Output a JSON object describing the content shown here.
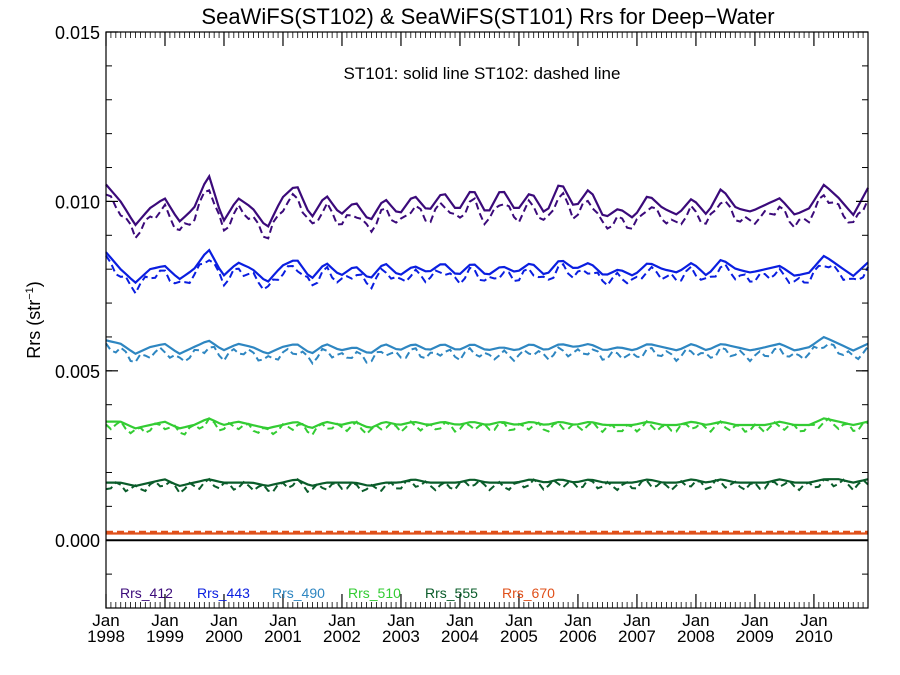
{
  "chart_data": {
    "type": "line",
    "title": "SeaWiFS(ST102) & SeaWiFS(ST101)  Rrs for Deep−Water",
    "annotation": "ST101: solid line   ST102: dashed line",
    "ylabel_base": "Rrs (str",
    "ylabel_sup": "−1",
    "ylabel_end": ")",
    "ylim": [
      -0.002,
      0.015
    ],
    "yticks": [
      0.0,
      0.005,
      0.01,
      0.015
    ],
    "ytick_labels": [
      "0.000",
      "0.005",
      "0.010",
      "0.015"
    ],
    "xlim": [
      "1998-01",
      "2010-12"
    ],
    "xtick_month": "Jan",
    "xtick_years": [
      "1998",
      "1999",
      "2000",
      "2001",
      "2002",
      "2003",
      "2004",
      "2005",
      "2006",
      "2007",
      "2008",
      "2009",
      "2010"
    ],
    "zero_line": true,
    "grid": false,
    "legend_position": "bottom-left",
    "series_defs": [
      {
        "name": "Rrs_412",
        "color": "#3b0a7a",
        "solid_anchors": [
          0.0105,
          0.01,
          0.0093,
          0.0098,
          0.0101,
          0.0094,
          0.0098,
          0.0108,
          0.0094,
          0.0101,
          0.0098,
          0.0092,
          0.0101,
          0.0105,
          0.0095,
          0.0102,
          0.0096,
          0.01,
          0.0094,
          0.0101,
          0.0096,
          0.0102,
          0.0097,
          0.0103,
          0.0097,
          0.0104,
          0.0096,
          0.0104,
          0.0097,
          0.0103,
          0.0096,
          0.0106,
          0.0098,
          0.0104,
          0.0095,
          0.0098,
          0.0095,
          0.0102,
          0.0098,
          0.0096,
          0.0101,
          0.0096,
          0.0104,
          0.0098,
          0.0097,
          0.0099,
          0.0101,
          0.0096,
          0.0098,
          0.0105,
          0.0101,
          0.0096,
          0.0104
        ],
        "dashed_offset": -0.0003
      },
      {
        "name": "Rrs_443",
        "color": "#0a1ee0",
        "solid_anchors": [
          0.0085,
          0.008,
          0.0076,
          0.008,
          0.0081,
          0.0077,
          0.008,
          0.0086,
          0.0078,
          0.0082,
          0.008,
          0.0076,
          0.0081,
          0.0083,
          0.0077,
          0.0082,
          0.0078,
          0.0081,
          0.0077,
          0.0082,
          0.0078,
          0.0081,
          0.0079,
          0.0082,
          0.0078,
          0.0082,
          0.0078,
          0.0081,
          0.0079,
          0.0082,
          0.0078,
          0.0083,
          0.008,
          0.0082,
          0.0078,
          0.008,
          0.0078,
          0.0082,
          0.008,
          0.0079,
          0.0082,
          0.0078,
          0.0083,
          0.008,
          0.0079,
          0.008,
          0.0081,
          0.0078,
          0.0079,
          0.0084,
          0.0081,
          0.0078,
          0.0082
        ],
        "dashed_offset": -0.0002
      },
      {
        "name": "Rrs_490",
        "color": "#2e86c1",
        "solid_anchors": [
          0.0059,
          0.0058,
          0.0055,
          0.0057,
          0.0058,
          0.0055,
          0.0057,
          0.0059,
          0.0056,
          0.0058,
          0.0057,
          0.0055,
          0.0057,
          0.0058,
          0.0055,
          0.0058,
          0.0056,
          0.0057,
          0.0055,
          0.0058,
          0.0056,
          0.0058,
          0.0056,
          0.0058,
          0.0056,
          0.0058,
          0.0056,
          0.0057,
          0.0056,
          0.0058,
          0.0056,
          0.0058,
          0.0057,
          0.0058,
          0.0056,
          0.0057,
          0.0056,
          0.0058,
          0.0057,
          0.0056,
          0.0058,
          0.0056,
          0.0058,
          0.0057,
          0.0056,
          0.0057,
          0.0058,
          0.0056,
          0.0057,
          0.006,
          0.0058,
          0.0056,
          0.0058
        ],
        "dashed_offset": -0.0002
      },
      {
        "name": "Rrs_510",
        "color": "#33cc33",
        "solid_anchors": [
          0.0035,
          0.0035,
          0.0033,
          0.0034,
          0.0035,
          0.0033,
          0.0034,
          0.0036,
          0.0034,
          0.0035,
          0.0034,
          0.0033,
          0.0034,
          0.0035,
          0.0033,
          0.0035,
          0.0034,
          0.0035,
          0.0033,
          0.0035,
          0.0034,
          0.0035,
          0.0034,
          0.0035,
          0.0034,
          0.0035,
          0.0034,
          0.0035,
          0.0034,
          0.0035,
          0.0034,
          0.0035,
          0.0034,
          0.0035,
          0.0034,
          0.0034,
          0.0034,
          0.0035,
          0.0034,
          0.0034,
          0.0035,
          0.0034,
          0.0035,
          0.0034,
          0.0034,
          0.0034,
          0.0035,
          0.0034,
          0.0034,
          0.0036,
          0.0035,
          0.0034,
          0.0035
        ],
        "dashed_offset": -0.0001
      },
      {
        "name": "Rrs_555",
        "color": "#0a5c2a",
        "solid_anchors": [
          0.0017,
          0.0017,
          0.0016,
          0.0017,
          0.0018,
          0.0016,
          0.0017,
          0.0018,
          0.0017,
          0.0017,
          0.0017,
          0.0016,
          0.0017,
          0.0018,
          0.0016,
          0.0017,
          0.0017,
          0.0017,
          0.0016,
          0.0017,
          0.0017,
          0.0018,
          0.0017,
          0.0017,
          0.0017,
          0.0018,
          0.0017,
          0.0017,
          0.0017,
          0.0018,
          0.0017,
          0.0018,
          0.0017,
          0.0018,
          0.0017,
          0.0017,
          0.0017,
          0.0018,
          0.0017,
          0.0017,
          0.0018,
          0.0017,
          0.0018,
          0.0017,
          0.0017,
          0.0017,
          0.0018,
          0.0017,
          0.0017,
          0.0018,
          0.0018,
          0.0017,
          0.0018
        ],
        "dashed_offset": -0.0001
      },
      {
        "name": "Rrs_670",
        "color": "#e0501a",
        "solid_anchors": [
          0.0002,
          0.0002,
          0.0002,
          0.0002,
          0.0002,
          0.0002,
          0.0002,
          0.0002,
          0.0002,
          0.0002,
          0.0002,
          0.0002,
          0.0002,
          0.0002,
          0.0002,
          0.0002,
          0.0002,
          0.0002,
          0.0002,
          0.0002,
          0.0002,
          0.0002,
          0.0002,
          0.0002,
          0.0002,
          0.0002,
          0.0002,
          0.0002,
          0.0002,
          0.0002,
          0.0002,
          0.0002,
          0.0002,
          0.0002,
          0.0002,
          0.0002,
          0.0002,
          0.0002,
          0.0002,
          0.0002,
          0.0002,
          0.0002,
          0.0002,
          0.0002,
          0.0002,
          0.0002,
          0.0002,
          0.0002,
          0.0002,
          0.0002,
          0.0002,
          0.0002,
          0.0002
        ],
        "dashed_offset": 5e-05
      }
    ]
  }
}
